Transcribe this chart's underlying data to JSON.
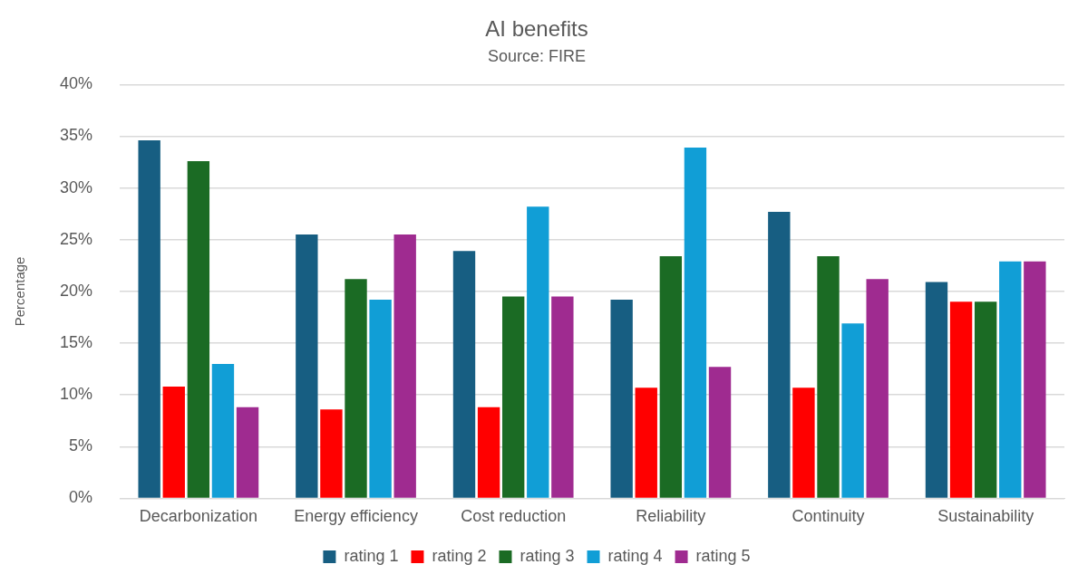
{
  "chart_data": {
    "type": "bar",
    "title": "AI benefits",
    "subtitle": "Source: FIRE",
    "ylabel": "Percentage",
    "categories": [
      "Decarbonization",
      "Energy efficiency",
      "Cost reduction",
      "Reliability",
      "Continuity",
      "Sustainability"
    ],
    "series": [
      {
        "name": "rating 1",
        "color": "#175e82",
        "values": [
          34.6,
          25.5,
          23.9,
          19.2,
          27.7,
          20.9
        ]
      },
      {
        "name": "rating 2",
        "color": "#ff0000",
        "values": [
          10.8,
          8.6,
          8.8,
          10.7,
          10.7,
          19.0
        ]
      },
      {
        "name": "rating 3",
        "color": "#1b6b24",
        "values": [
          32.6,
          21.2,
          19.5,
          23.4,
          23.4,
          19.0
        ]
      },
      {
        "name": "rating 4",
        "color": "#119ed6",
        "values": [
          13.0,
          19.2,
          28.2,
          33.9,
          16.9,
          22.9
        ]
      },
      {
        "name": "rating 5",
        "color": "#9f2b90",
        "values": [
          8.8,
          25.5,
          19.5,
          12.7,
          21.2,
          22.9
        ]
      }
    ],
    "ylim": [
      0,
      40
    ],
    "yticks": [
      {
        "value": 0,
        "label": "0%"
      },
      {
        "value": 5,
        "label": "5%"
      },
      {
        "value": 10,
        "label": "10%"
      },
      {
        "value": 15,
        "label": "15%"
      },
      {
        "value": 20,
        "label": "20%"
      },
      {
        "value": 25,
        "label": "25%"
      },
      {
        "value": 30,
        "label": "30%"
      },
      {
        "value": 35,
        "label": "35%"
      },
      {
        "value": 40,
        "label": "40%"
      }
    ],
    "grid": "y",
    "legend": "bottom"
  }
}
